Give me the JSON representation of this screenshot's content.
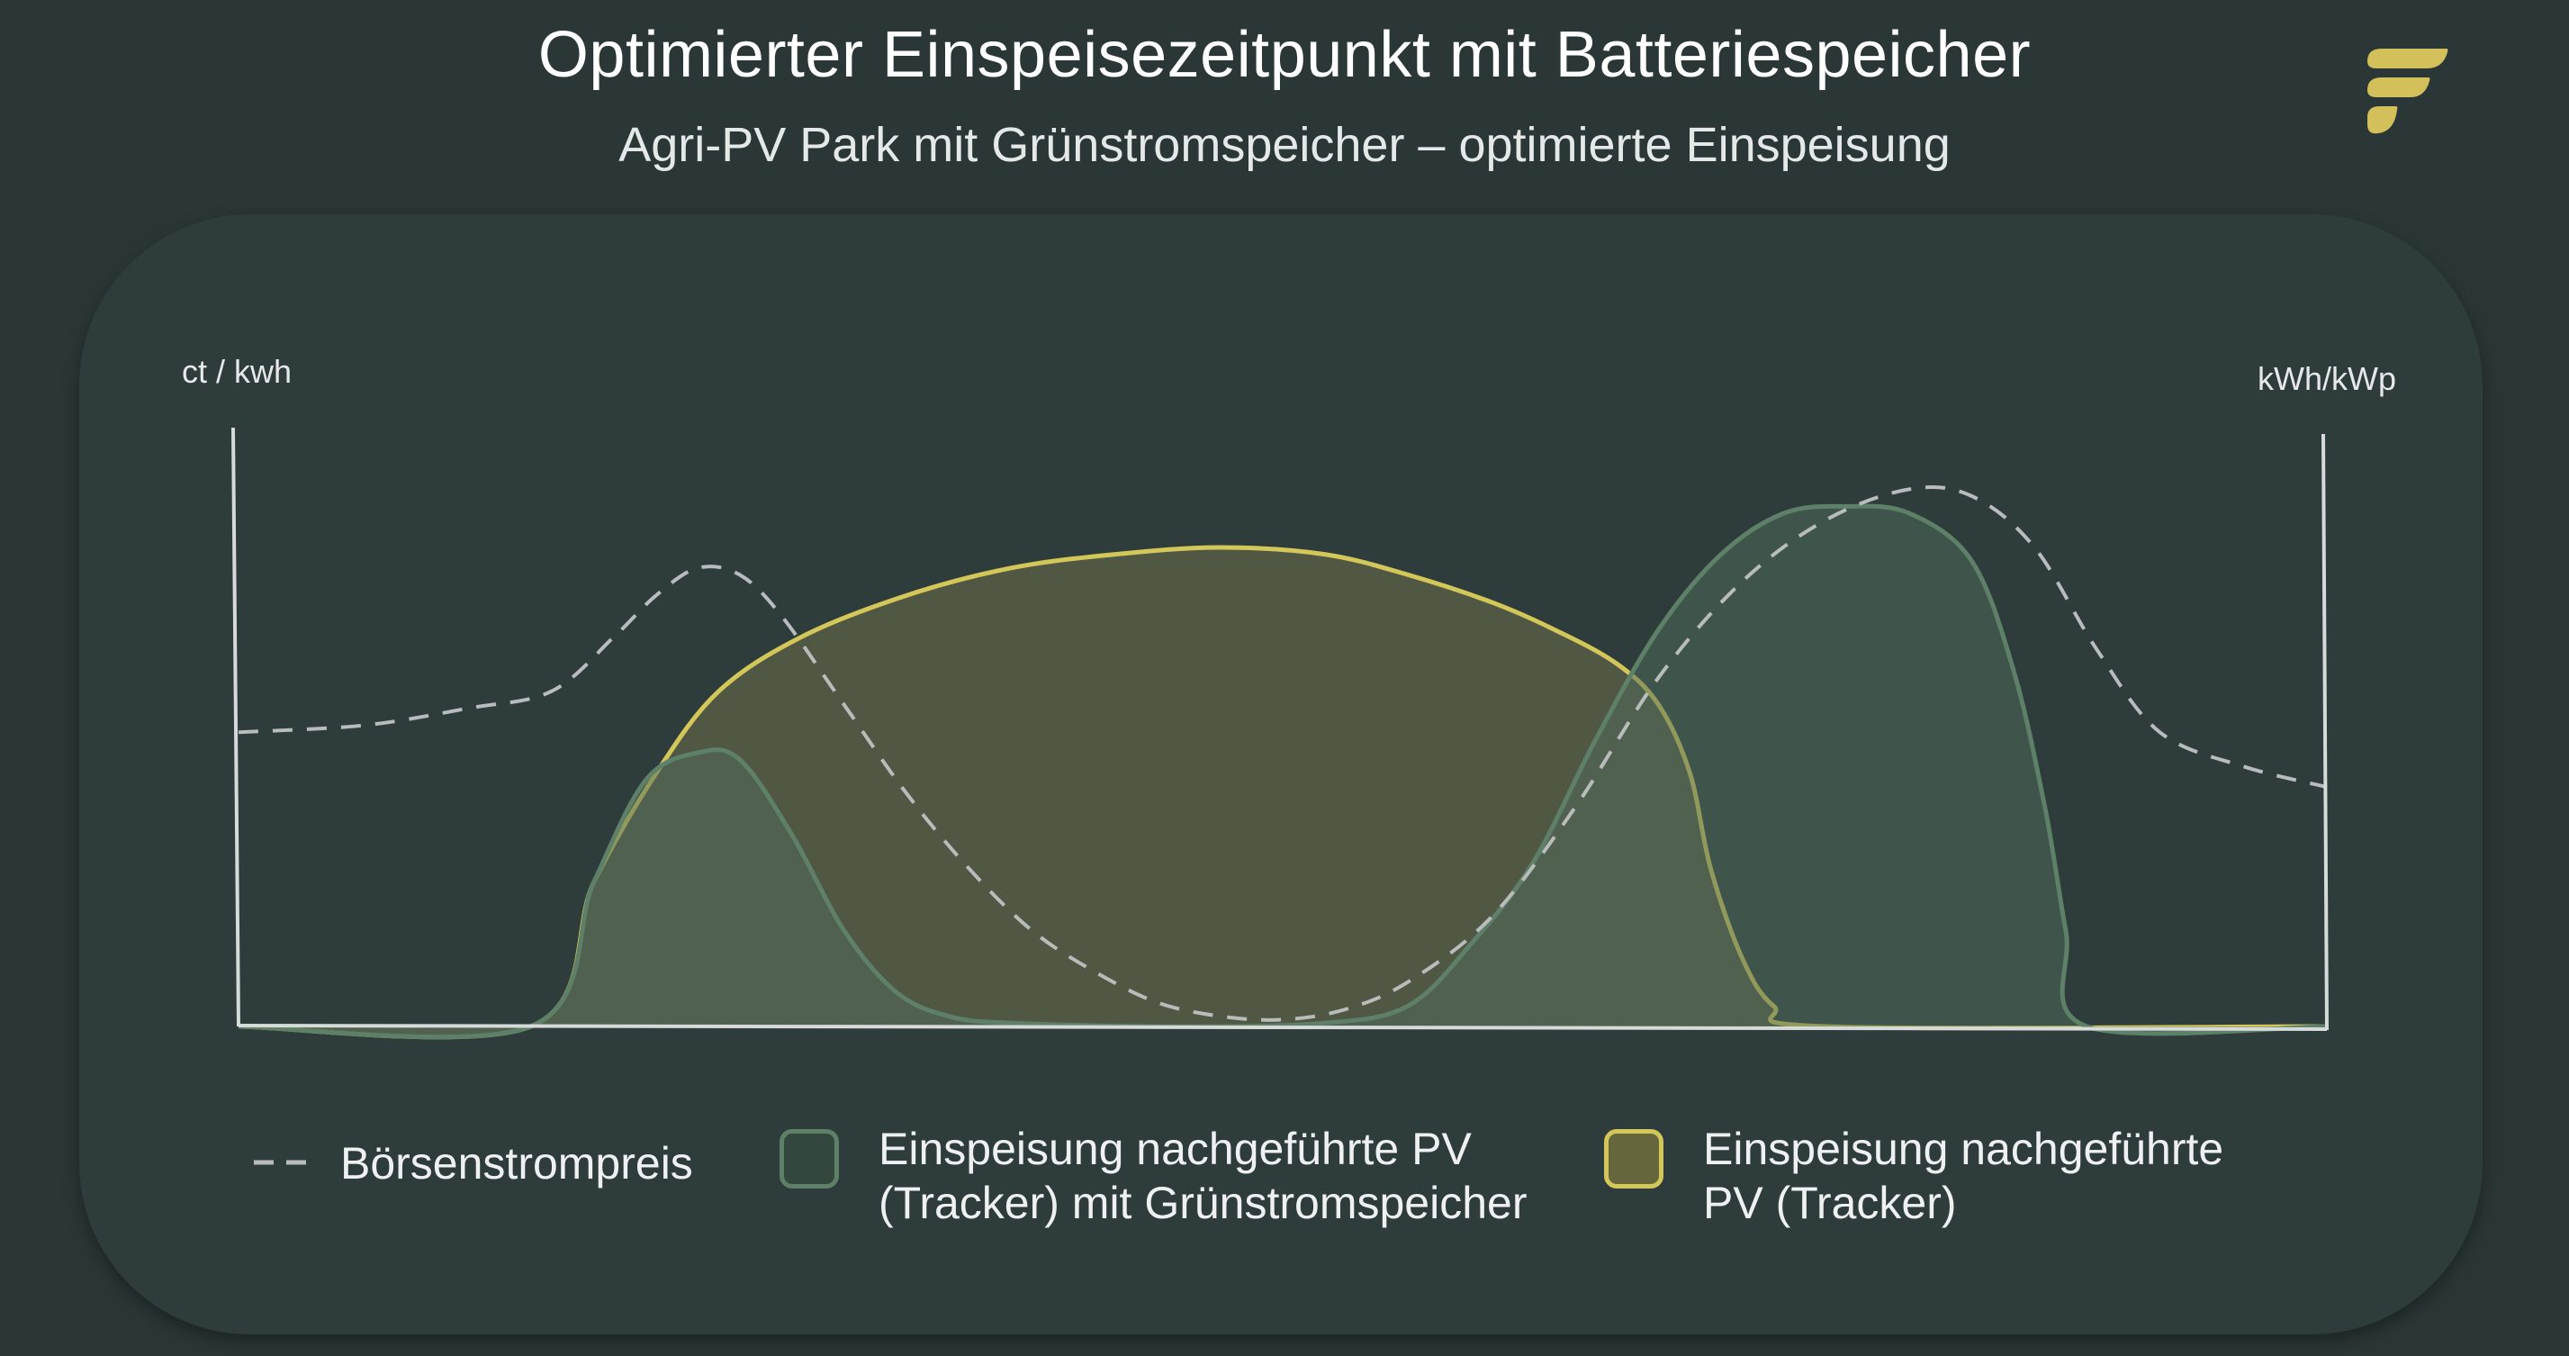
{
  "header": {
    "title": "Optimierter Einspeisezeitpunkt mit Batteriespeicher",
    "subtitle": "Agri-PV Park mit Grünstromspeicher – optimierte Einspeisung"
  },
  "logo": {
    "icon": "brand-logo-icon",
    "color": "#d4c05a"
  },
  "chart_data": {
    "type": "area",
    "title": "Optimierter Einspeisezeitpunkt mit Batteriespeicher",
    "subtitle": "Agri-PV Park mit Grünstromspeicher – optimierte Einspeisung",
    "ylabel_left": "ct / kwh",
    "ylabel_right": "kWh/kWp",
    "xlabel": "",
    "x_range": [
      0,
      100
    ],
    "y_range": [
      0,
      100
    ],
    "grid": false,
    "legend_position": "bottom",
    "series": [
      {
        "name": "Einspeisung nachgeführte PV (Tracker)",
        "style": "area",
        "stroke": "#d4c75a",
        "fill": "#6b6e47",
        "fill_opacity": 0.55,
        "points": [
          [
            0,
            0
          ],
          [
            14,
            0
          ],
          [
            17,
            21
          ],
          [
            20,
            37
          ],
          [
            23,
            49
          ],
          [
            27,
            57
          ],
          [
            32,
            63
          ],
          [
            37,
            67
          ],
          [
            42,
            69
          ],
          [
            47,
            70
          ],
          [
            52,
            69
          ],
          [
            56,
            66
          ],
          [
            60,
            62
          ],
          [
            63,
            58
          ],
          [
            66,
            53
          ],
          [
            68,
            47
          ],
          [
            69.5,
            37
          ],
          [
            70.5,
            23
          ],
          [
            72,
            10
          ],
          [
            73.5,
            3
          ],
          [
            76,
            0
          ],
          [
            100,
            0
          ]
        ]
      },
      {
        "name": "Einspeisung nachgeführte PV (Tracker) mit Grünstromspeicher",
        "style": "area",
        "stroke": "#5e7f68",
        "fill": "#4f6e5c",
        "fill_opacity": 0.5,
        "points": [
          [
            0,
            0
          ],
          [
            14,
            0
          ],
          [
            17,
            21
          ],
          [
            19.5,
            36
          ],
          [
            22,
            40
          ],
          [
            24,
            39
          ],
          [
            26.5,
            28
          ],
          [
            29,
            14
          ],
          [
            31.5,
            5
          ],
          [
            34,
            1.5
          ],
          [
            37,
            0.5
          ],
          [
            45,
            0
          ],
          [
            52,
            0.5
          ],
          [
            56,
            3
          ],
          [
            59,
            12
          ],
          [
            62,
            24
          ],
          [
            65,
            42
          ],
          [
            68,
            58
          ],
          [
            71,
            69
          ],
          [
            74,
            75
          ],
          [
            77,
            76
          ],
          [
            80,
            75
          ],
          [
            83,
            68
          ],
          [
            85,
            52
          ],
          [
            86.5,
            32
          ],
          [
            87.5,
            14
          ],
          [
            88.5,
            0
          ],
          [
            100,
            0
          ]
        ]
      },
      {
        "name": "Börsenstrompreis",
        "style": "dashed-line",
        "stroke": "#b8bcbb",
        "points": [
          [
            0,
            43
          ],
          [
            6,
            44
          ],
          [
            11,
            46.5
          ],
          [
            15,
            49
          ],
          [
            18,
            57
          ],
          [
            20,
            63
          ],
          [
            22,
            67
          ],
          [
            24,
            66
          ],
          [
            26,
            60
          ],
          [
            29,
            47
          ],
          [
            32,
            34
          ],
          [
            35,
            23
          ],
          [
            38,
            14
          ],
          [
            41,
            8
          ],
          [
            44,
            3.5
          ],
          [
            47,
            1.5
          ],
          [
            50,
            1
          ],
          [
            53,
            2.5
          ],
          [
            56,
            6.5
          ],
          [
            60,
            16
          ],
          [
            64,
            32
          ],
          [
            68,
            51
          ],
          [
            72,
            65
          ],
          [
            76,
            74
          ],
          [
            80,
            78.5
          ],
          [
            83,
            77.5
          ],
          [
            86,
            70
          ],
          [
            89,
            55
          ],
          [
            92,
            43
          ],
          [
            96,
            38
          ],
          [
            100,
            35
          ]
        ]
      }
    ]
  },
  "legend": {
    "price_label": "Börsenstrompreis",
    "storage_label": "Einspeisung nachgeführte PV\n(Tracker) mit Grünstromspeicher",
    "tracker_label": "Einspeisung nachgeführte\nPV (Tracker)",
    "colors": {
      "price": "#b8bcbb",
      "storage_stroke": "#5e7f68",
      "storage_fill": "#34473f",
      "tracker_stroke": "#d4c75a",
      "tracker_fill": "#66663d"
    }
  }
}
